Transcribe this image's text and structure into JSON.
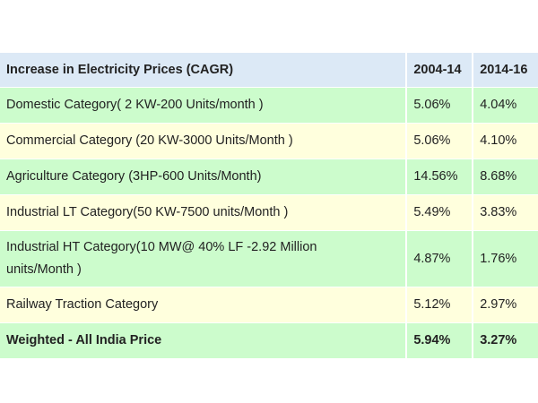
{
  "table": {
    "headers": [
      "Increase in Electricity Prices (CAGR)",
      "2004-14",
      "2014-16"
    ],
    "rows": [
      {
        "category": "Domestic Category( 2 KW-200 Units/month )",
        "p2004_14": "5.06%",
        "p2014_16": "4.04%"
      },
      {
        "category": "Commercial Category (20 KW-3000 Units/Month )",
        "p2004_14": "5.06%",
        "p2014_16": "4.10%"
      },
      {
        "category": "Agriculture Category (3HP-600 Units/Month)",
        "p2004_14": "14.56%",
        "p2014_16": "8.68%"
      },
      {
        "category": "Industrial LT Category(50 KW-7500 units/Month )",
        "p2004_14": "5.49%",
        "p2014_16": "3.83%"
      },
      {
        "category": "Industrial HT Category(10 MW@ 40% LF -2.92 Million units/Month )",
        "p2004_14": "4.87%",
        "p2014_16": "1.76%"
      },
      {
        "category": "Railway Traction Category",
        "p2004_14": "5.12%",
        "p2014_16": "2.97%"
      },
      {
        "category": "Weighted - All India Price",
        "p2004_14": "5.94%",
        "p2014_16": "3.27%"
      }
    ]
  },
  "colors": {
    "header": "#dce9f6",
    "green_row": "#ccfccc",
    "yellow_row": "#ffffdd"
  }
}
